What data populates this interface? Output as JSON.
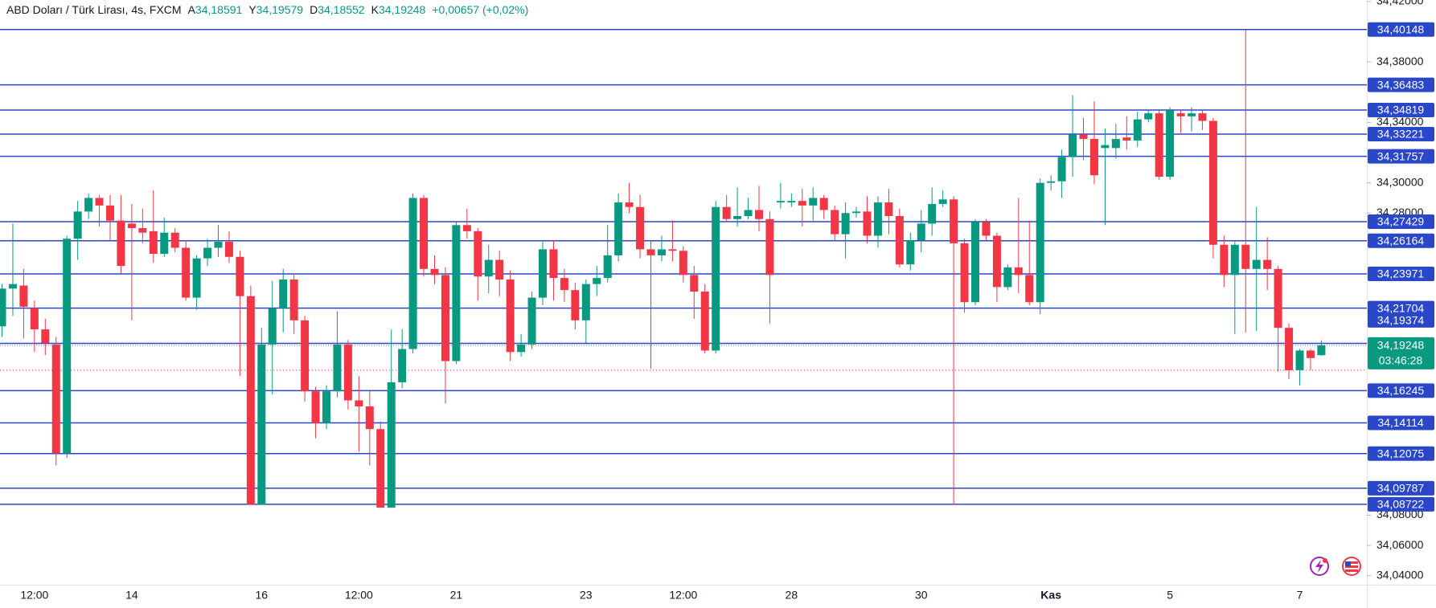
{
  "chart_data": {
    "type": "candlestick",
    "legend": {
      "title": "ABD Doları / Türk Lirası, 4s, FXCM",
      "fields": [
        {
          "key": "A",
          "value": "34,18591"
        },
        {
          "key": "Y",
          "value": "34,19579"
        },
        {
          "key": "D",
          "value": "34,18552"
        },
        {
          "key": "K",
          "value": "34,19248"
        }
      ],
      "change": "+0,00657 (+0,02%)"
    },
    "categories": [
      null,
      null,
      null,
      "12:00",
      null,
      null,
      null,
      null,
      null,
      null,
      null,
      null,
      "14",
      null,
      null,
      null,
      null,
      null,
      null,
      null,
      null,
      null,
      null,
      null,
      "16",
      null,
      null,
      null,
      null,
      null,
      null,
      null,
      null,
      "12:00",
      null,
      null,
      null,
      null,
      null,
      null,
      null,
      null,
      "21",
      null,
      null,
      null,
      null,
      null,
      null,
      null,
      null,
      null,
      null,
      null,
      "23",
      null,
      null,
      null,
      null,
      null,
      null,
      null,
      null,
      "12:00",
      null,
      null,
      null,
      null,
      null,
      null,
      null,
      null,
      null,
      "28",
      null,
      null,
      null,
      null,
      null,
      null,
      null,
      null,
      null,
      null,
      null,
      "30",
      null,
      null,
      null,
      null,
      null,
      null,
      null,
      null,
      null,
      null,
      null,
      "Kas",
      null,
      null,
      null,
      null,
      null,
      null,
      null,
      null,
      null,
      null,
      "5",
      null,
      null,
      null,
      null,
      null,
      null,
      null,
      null,
      null,
      null,
      null,
      "7",
      null,
      null
    ],
    "open": [
      34.205,
      34.23,
      34.232,
      34.217,
      34.203,
      34.193,
      34.121,
      34.263,
      34.281,
      34.29,
      34.285,
      34.275,
      34.273,
      34.27,
      34.268,
      34.253,
      34.267,
      34.257,
      34.224,
      34.25,
      34.257,
      34.261,
      34.251,
      34.225,
      34.087,
      34.193,
      34.217,
      34.236,
      34.209,
      34.162,
      34.141,
      34.162,
      34.193,
      34.156,
      34.152,
      34.137,
      34.085,
      34.168,
      34.19,
      34.29,
      34.243,
      34.239,
      34.182,
      34.272,
      34.268,
      34.238,
      34.249,
      34.236,
      34.188,
      34.193,
      34.224,
      34.256,
      34.237,
      34.229,
      34.209,
      34.233,
      34.237,
      34.252,
      34.287,
      34.284,
      34.256,
      34.252,
      34.256,
      34.255,
      34.239,
      34.228,
      34.189,
      34.284,
      34.276,
      34.278,
      34.282,
      34.276,
      34.287,
      34.287,
      34.288,
      34.285,
      34.29,
      34.282,
      34.266,
      34.28,
      34.281,
      34.265,
      34.287,
      34.278,
      34.246,
      34.262,
      34.273,
      34.286,
      34.289,
      34.26,
      34.221,
      34.274,
      34.265,
      34.231,
      34.244,
      34.239,
      34.221,
      34.3,
      34.301,
      34.317,
      34.332,
      34.329,
      34.323,
      34.323,
      34.33,
      34.328,
      34.342,
      34.346,
      34.304,
      34.346,
      34.344,
      34.346,
      34.341,
      34.259,
      34.239,
      34.259,
      34.243,
      34.249,
      34.243,
      34.204,
      34.176,
      34.189,
      34.18591
    ],
    "high": [
      34.233,
      34.273,
      34.243,
      34.222,
      34.21,
      34.198,
      34.265,
      34.288,
      34.293,
      34.292,
      34.292,
      34.292,
      34.286,
      34.283,
      34.295,
      34.277,
      34.27,
      34.262,
      34.252,
      34.263,
      34.272,
      34.268,
      34.255,
      34.232,
      34.204,
      34.235,
      34.243,
      34.24,
      34.212,
      34.165,
      34.166,
      34.215,
      34.196,
      34.172,
      34.163,
      34.142,
      34.203,
      34.203,
      34.293,
      34.292,
      34.252,
      34.244,
      34.274,
      34.283,
      34.27,
      34.259,
      34.255,
      34.242,
      34.2,
      34.228,
      34.262,
      34.262,
      34.243,
      34.234,
      34.236,
      34.245,
      34.272,
      34.293,
      34.3,
      34.292,
      34.262,
      34.265,
      34.275,
      34.258,
      34.245,
      34.233,
      34.288,
      34.292,
      34.297,
      34.29,
      34.298,
      34.281,
      34.3,
      34.293,
      34.296,
      34.297,
      34.292,
      34.285,
      34.287,
      34.284,
      34.291,
      34.291,
      34.296,
      34.283,
      34.267,
      34.282,
      34.297,
      34.295,
      34.291,
      34.263,
      34.276,
      34.276,
      34.267,
      34.246,
      34.29,
      34.275,
      34.303,
      34.305,
      34.322,
      34.358,
      34.343,
      34.354,
      34.336,
      34.339,
      34.344,
      34.347,
      34.348,
      34.348,
      34.35,
      34.348,
      34.35,
      34.348,
      34.343,
      34.265,
      34.262,
      34.401,
      34.284,
      34.264,
      34.245,
      34.207,
      34.19,
      34.19,
      34.19579
    ],
    "low": [
      34.198,
      34.212,
      34.197,
      34.188,
      34.186,
      34.113,
      34.118,
      34.249,
      34.276,
      34.271,
      34.262,
      34.24,
      34.209,
      34.26,
      34.247,
      34.251,
      34.254,
      34.222,
      34.216,
      34.245,
      34.251,
      34.247,
      34.172,
      34.087,
      34.087,
      34.16,
      34.201,
      34.2,
      34.155,
      34.131,
      34.137,
      34.158,
      34.15,
      34.122,
      34.113,
      34.085,
      34.085,
      34.164,
      34.187,
      34.238,
      34.233,
      34.154,
      34.18,
      34.263,
      34.222,
      34.227,
      34.225,
      34.182,
      34.185,
      34.19,
      34.219,
      34.222,
      34.221,
      34.203,
      34.194,
      34.225,
      34.234,
      34.248,
      34.28,
      34.25,
      34.177,
      34.248,
      34.248,
      34.234,
      34.21,
      34.187,
      34.187,
      34.274,
      34.271,
      34.276,
      34.268,
      34.207,
      34.283,
      34.284,
      34.271,
      34.275,
      34.276,
      34.262,
      34.25,
      34.277,
      34.26,
      34.257,
      34.266,
      34.244,
      34.242,
      34.254,
      34.265,
      34.284,
      34.087,
      34.214,
      34.219,
      34.262,
      34.221,
      34.229,
      34.227,
      34.219,
      34.213,
      34.295,
      34.29,
      34.304,
      34.315,
      34.299,
      34.272,
      34.316,
      34.322,
      34.324,
      34.34,
      34.302,
      34.302,
      34.333,
      34.334,
      34.335,
      34.25,
      34.231,
      34.2,
      34.201,
      34.202,
      34.229,
      34.175,
      34.17,
      34.166,
      34.176,
      34.18552
    ],
    "close": [
      34.23,
      34.233,
      34.218,
      34.203,
      34.194,
      34.121,
      34.263,
      34.281,
      34.29,
      34.285,
      34.275,
      34.245,
      34.27,
      34.267,
      34.253,
      34.267,
      34.257,
      34.224,
      34.25,
      34.257,
      34.261,
      34.251,
      34.225,
      34.087,
      34.193,
      34.217,
      34.236,
      34.209,
      34.162,
      34.141,
      34.162,
      34.193,
      34.156,
      34.152,
      34.137,
      34.085,
      34.168,
      34.19,
      34.29,
      34.243,
      34.239,
      34.182,
      34.272,
      34.268,
      34.238,
      34.249,
      34.236,
      34.188,
      34.193,
      34.224,
      34.256,
      34.237,
      34.229,
      34.209,
      34.233,
      34.237,
      34.252,
      34.287,
      34.284,
      34.256,
      34.252,
      34.256,
      34.255,
      34.239,
      34.228,
      34.189,
      34.284,
      34.276,
      34.278,
      34.282,
      34.276,
      34.239,
      34.288,
      34.288,
      34.285,
      34.29,
      34.282,
      34.266,
      34.28,
      34.281,
      34.265,
      34.287,
      34.278,
      34.246,
      34.262,
      34.273,
      34.286,
      34.289,
      34.26,
      34.221,
      34.274,
      34.265,
      34.231,
      34.244,
      34.239,
      34.221,
      34.3,
      34.301,
      34.317,
      34.332,
      34.329,
      34.305,
      34.325,
      34.329,
      34.328,
      34.342,
      34.346,
      34.304,
      34.348,
      34.344,
      34.346,
      34.341,
      34.259,
      34.239,
      34.259,
      34.243,
      34.249,
      34.243,
      34.204,
      34.176,
      34.189,
      34.184,
      34.19248
    ],
    "up_color": "#089981",
    "down_color": "#f23645",
    "ylim": [
      34.034,
      34.421
    ],
    "yticks": [
      {
        "value": 34.42,
        "label": "34,42000"
      },
      {
        "value": 34.38,
        "label": "34,38000"
      },
      {
        "value": 34.34,
        "label": "34,34000"
      },
      {
        "value": 34.3,
        "label": "34,30000"
      },
      {
        "value": 34.28,
        "label": "34,28000"
      },
      {
        "value": 34.08,
        "label": "34,08000"
      },
      {
        "value": 34.06,
        "label": "34,06000"
      },
      {
        "value": 34.04,
        "label": "34,04000"
      }
    ],
    "levels": [
      {
        "value": 34.40148,
        "label": "34,40148"
      },
      {
        "value": 34.36483,
        "label": "34,36483"
      },
      {
        "value": 34.34819,
        "label": "34,34819"
      },
      {
        "value": 34.33221,
        "label": "34,33221"
      },
      {
        "value": 34.31757,
        "label": "34,31757"
      },
      {
        "value": 34.27429,
        "label": "34,27429"
      },
      {
        "value": 34.26164,
        "label": "34,26164"
      },
      {
        "value": 34.23971,
        "label": "34,23971"
      },
      {
        "value": 34.21704,
        "label": "34,21704"
      },
      {
        "value": 34.19374,
        "label": "34,19374"
      },
      {
        "value": 34.16245,
        "label": "34,16245"
      },
      {
        "value": 34.14114,
        "label": "34,14114"
      },
      {
        "value": 34.12075,
        "label": "34,12075"
      },
      {
        "value": 34.09787,
        "label": "34,09787"
      },
      {
        "value": 34.08722,
        "label": "34,08722"
      }
    ],
    "level_color": "#2a46c9",
    "current_price": {
      "value": 34.19248,
      "label": "34,19248"
    },
    "countdown": "03:46:28",
    "reference_line": 34.176
  }
}
